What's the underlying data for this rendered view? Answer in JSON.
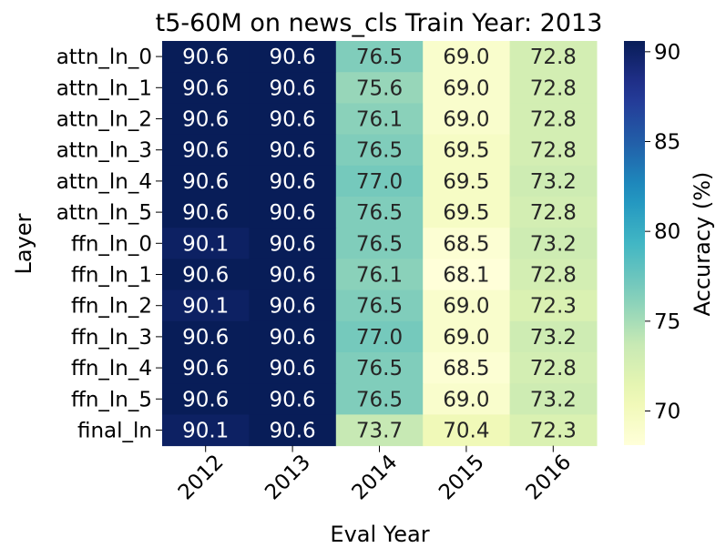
{
  "chart_data": {
    "type": "heatmap",
    "title": "t5-60M on news_cls Train Year: 2013",
    "xlabel": "Eval Year",
    "ylabel": "Layer",
    "x_categories": [
      "2012",
      "2013",
      "2014",
      "2015",
      "2016"
    ],
    "y_categories": [
      "attn_ln_0",
      "attn_ln_1",
      "attn_ln_2",
      "attn_ln_3",
      "attn_ln_4",
      "attn_ln_5",
      "ffn_ln_0",
      "ffn_ln_1",
      "ffn_ln_2",
      "ffn_ln_3",
      "ffn_ln_4",
      "ffn_ln_5",
      "final_ln"
    ],
    "values": [
      [
        90.6,
        90.6,
        76.5,
        69.0,
        72.8
      ],
      [
        90.6,
        90.6,
        75.6,
        69.0,
        72.8
      ],
      [
        90.6,
        90.6,
        76.1,
        69.0,
        72.8
      ],
      [
        90.6,
        90.6,
        76.5,
        69.5,
        72.8
      ],
      [
        90.6,
        90.6,
        77.0,
        69.5,
        73.2
      ],
      [
        90.6,
        90.6,
        76.5,
        69.5,
        72.8
      ],
      [
        90.1,
        90.6,
        76.5,
        68.5,
        73.2
      ],
      [
        90.6,
        90.6,
        76.1,
        68.1,
        72.8
      ],
      [
        90.1,
        90.6,
        76.5,
        69.0,
        72.3
      ],
      [
        90.6,
        90.6,
        77.0,
        69.0,
        73.2
      ],
      [
        90.6,
        90.6,
        76.5,
        68.5,
        72.8
      ],
      [
        90.6,
        90.6,
        76.5,
        69.0,
        73.2
      ],
      [
        90.1,
        90.6,
        73.7,
        70.4,
        72.3
      ]
    ],
    "value_format": "0.1f",
    "colormap": "YlGnBu",
    "colorbar": {
      "label": "Accuracy (%)",
      "min": 68.1,
      "max": 90.6,
      "ticks": [
        70,
        75,
        80,
        85,
        90
      ]
    }
  }
}
